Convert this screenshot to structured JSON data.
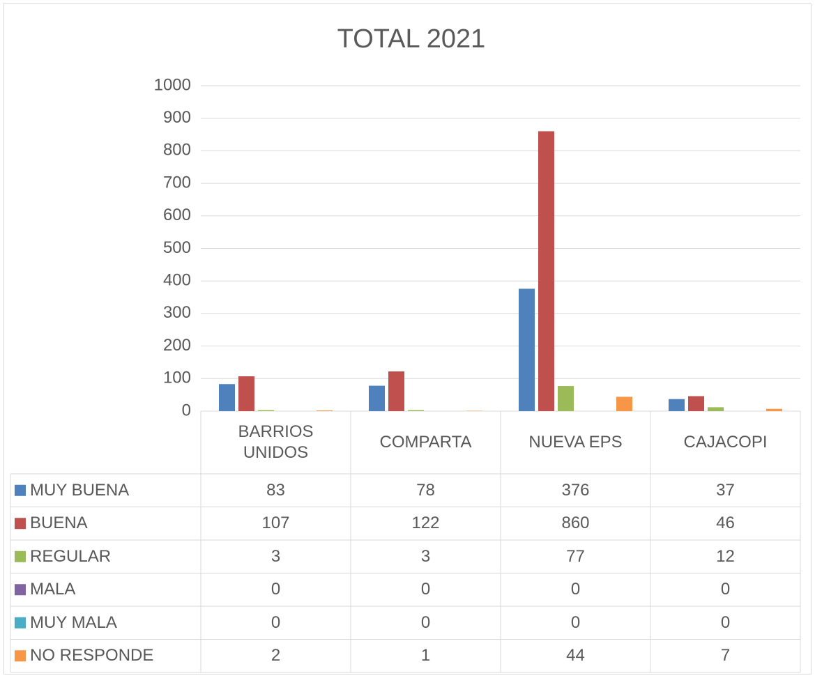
{
  "chart_data": {
    "type": "bar",
    "title": "TOTAL 2021",
    "categories": [
      "BARRIOS UNIDOS",
      "COMPARTA",
      "NUEVA EPS",
      "CAJACOPI"
    ],
    "series": [
      {
        "name": "MUY BUENA",
        "color": "#4F81BD",
        "values": [
          83,
          78,
          376,
          37
        ]
      },
      {
        "name": "BUENA",
        "color": "#C0504D",
        "values": [
          107,
          122,
          860,
          46
        ]
      },
      {
        "name": "REGULAR",
        "color": "#9BBB59",
        "values": [
          3,
          3,
          77,
          12
        ]
      },
      {
        "name": "MALA",
        "color": "#8064A2",
        "values": [
          0,
          0,
          0,
          0
        ]
      },
      {
        "name": "MUY MALA",
        "color": "#4BACC6",
        "values": [
          0,
          0,
          0,
          0
        ]
      },
      {
        "name": "NO RESPONDE",
        "color": "#F79646",
        "values": [
          2,
          1,
          44,
          7
        ]
      }
    ],
    "ylim": [
      0,
      1000
    ],
    "yticks": [
      0,
      100,
      200,
      300,
      400,
      500,
      600,
      700,
      800,
      900,
      1000
    ],
    "grid": true
  }
}
